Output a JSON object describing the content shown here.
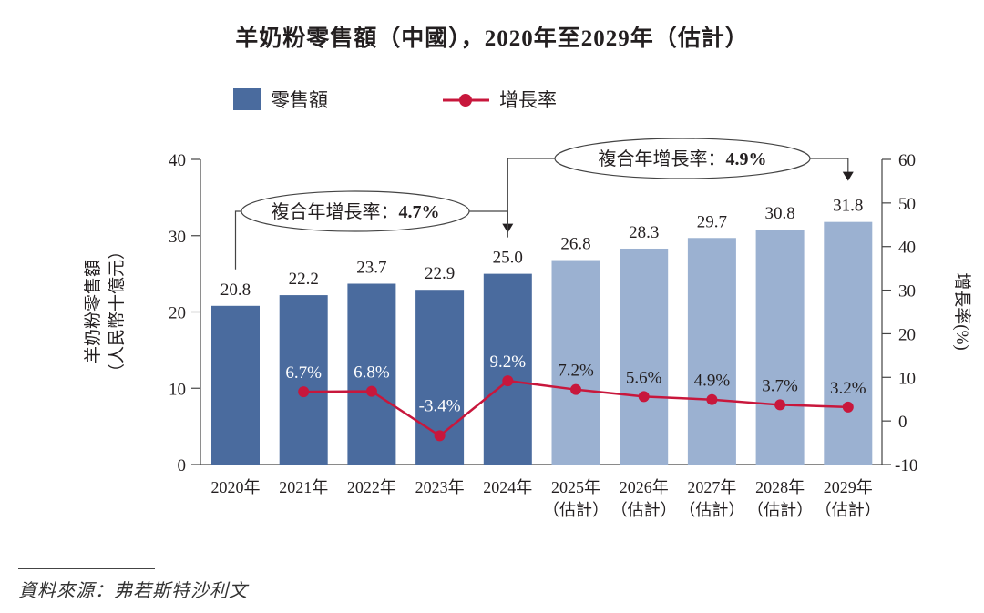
{
  "chart_data": {
    "type": "bar",
    "title": "羊奶粉零售額（中國），2020年至2029年（估計）",
    "categories": [
      "2020年",
      "2021年",
      "2022年",
      "2023年",
      "2024年",
      "2025年",
      "2026年",
      "2027年",
      "2028年",
      "2029年"
    ],
    "category_sublabels": [
      "",
      "",
      "",
      "",
      "",
      "（估計）",
      "（估計）",
      "（估計）",
      "（估計）",
      "（估計）"
    ],
    "series": [
      {
        "name": "零售額",
        "type": "bar",
        "axis": "left",
        "values": [
          20.8,
          22.2,
          23.7,
          22.9,
          25.0,
          26.8,
          28.3,
          29.7,
          30.8,
          31.8
        ],
        "labels": [
          "20.8",
          "22.2",
          "23.7",
          "22.9",
          "25.0",
          "26.8",
          "28.3",
          "29.7",
          "30.8",
          "31.8"
        ],
        "estimated": [
          false,
          false,
          false,
          false,
          false,
          true,
          true,
          true,
          true,
          true
        ]
      },
      {
        "name": "增長率",
        "type": "line",
        "axis": "right",
        "values": [
          null,
          6.7,
          6.8,
          -3.4,
          9.2,
          7.2,
          5.6,
          4.9,
          3.7,
          3.2
        ],
        "labels": [
          "",
          "6.7%",
          "6.8%",
          "-3.4%",
          "9.2%",
          "7.2%",
          "5.6%",
          "4.9%",
          "3.7%",
          "3.2%"
        ]
      }
    ],
    "ylabel": "羊奶粉零售額\n（人民幣十億元）",
    "ylabel_lines": [
      "羊奶粉零售額",
      "（人民幣十億元）"
    ],
    "y2label": "增長率(%)",
    "ylim": [
      0,
      40
    ],
    "yticks": [
      0,
      10,
      20,
      30,
      40
    ],
    "y2lim": [
      -10,
      60
    ],
    "y2ticks": [
      -10,
      0,
      10,
      20,
      30,
      40,
      50,
      60
    ],
    "grid": false,
    "legend": {
      "placement": "top-left",
      "entries": [
        {
          "label": "零售額",
          "marker": "square"
        },
        {
          "label": "增長率",
          "marker": "line-dot"
        }
      ]
    },
    "annotations": [
      {
        "text_prefix": "複合年增長率：",
        "text_value": "4.7%",
        "from_index": 0,
        "to_index": 4
      },
      {
        "text_prefix": "複合年增長率：",
        "text_value": "4.9%",
        "from_index": 4,
        "to_index": 9
      }
    ]
  },
  "colors": {
    "bar_actual": "#4a6b9e",
    "bar_estimate": "#9bb1d1",
    "line": "#c8173c",
    "axis": "#444444",
    "text": "#231f20"
  },
  "source": "資料來源：弗若斯特沙利文"
}
